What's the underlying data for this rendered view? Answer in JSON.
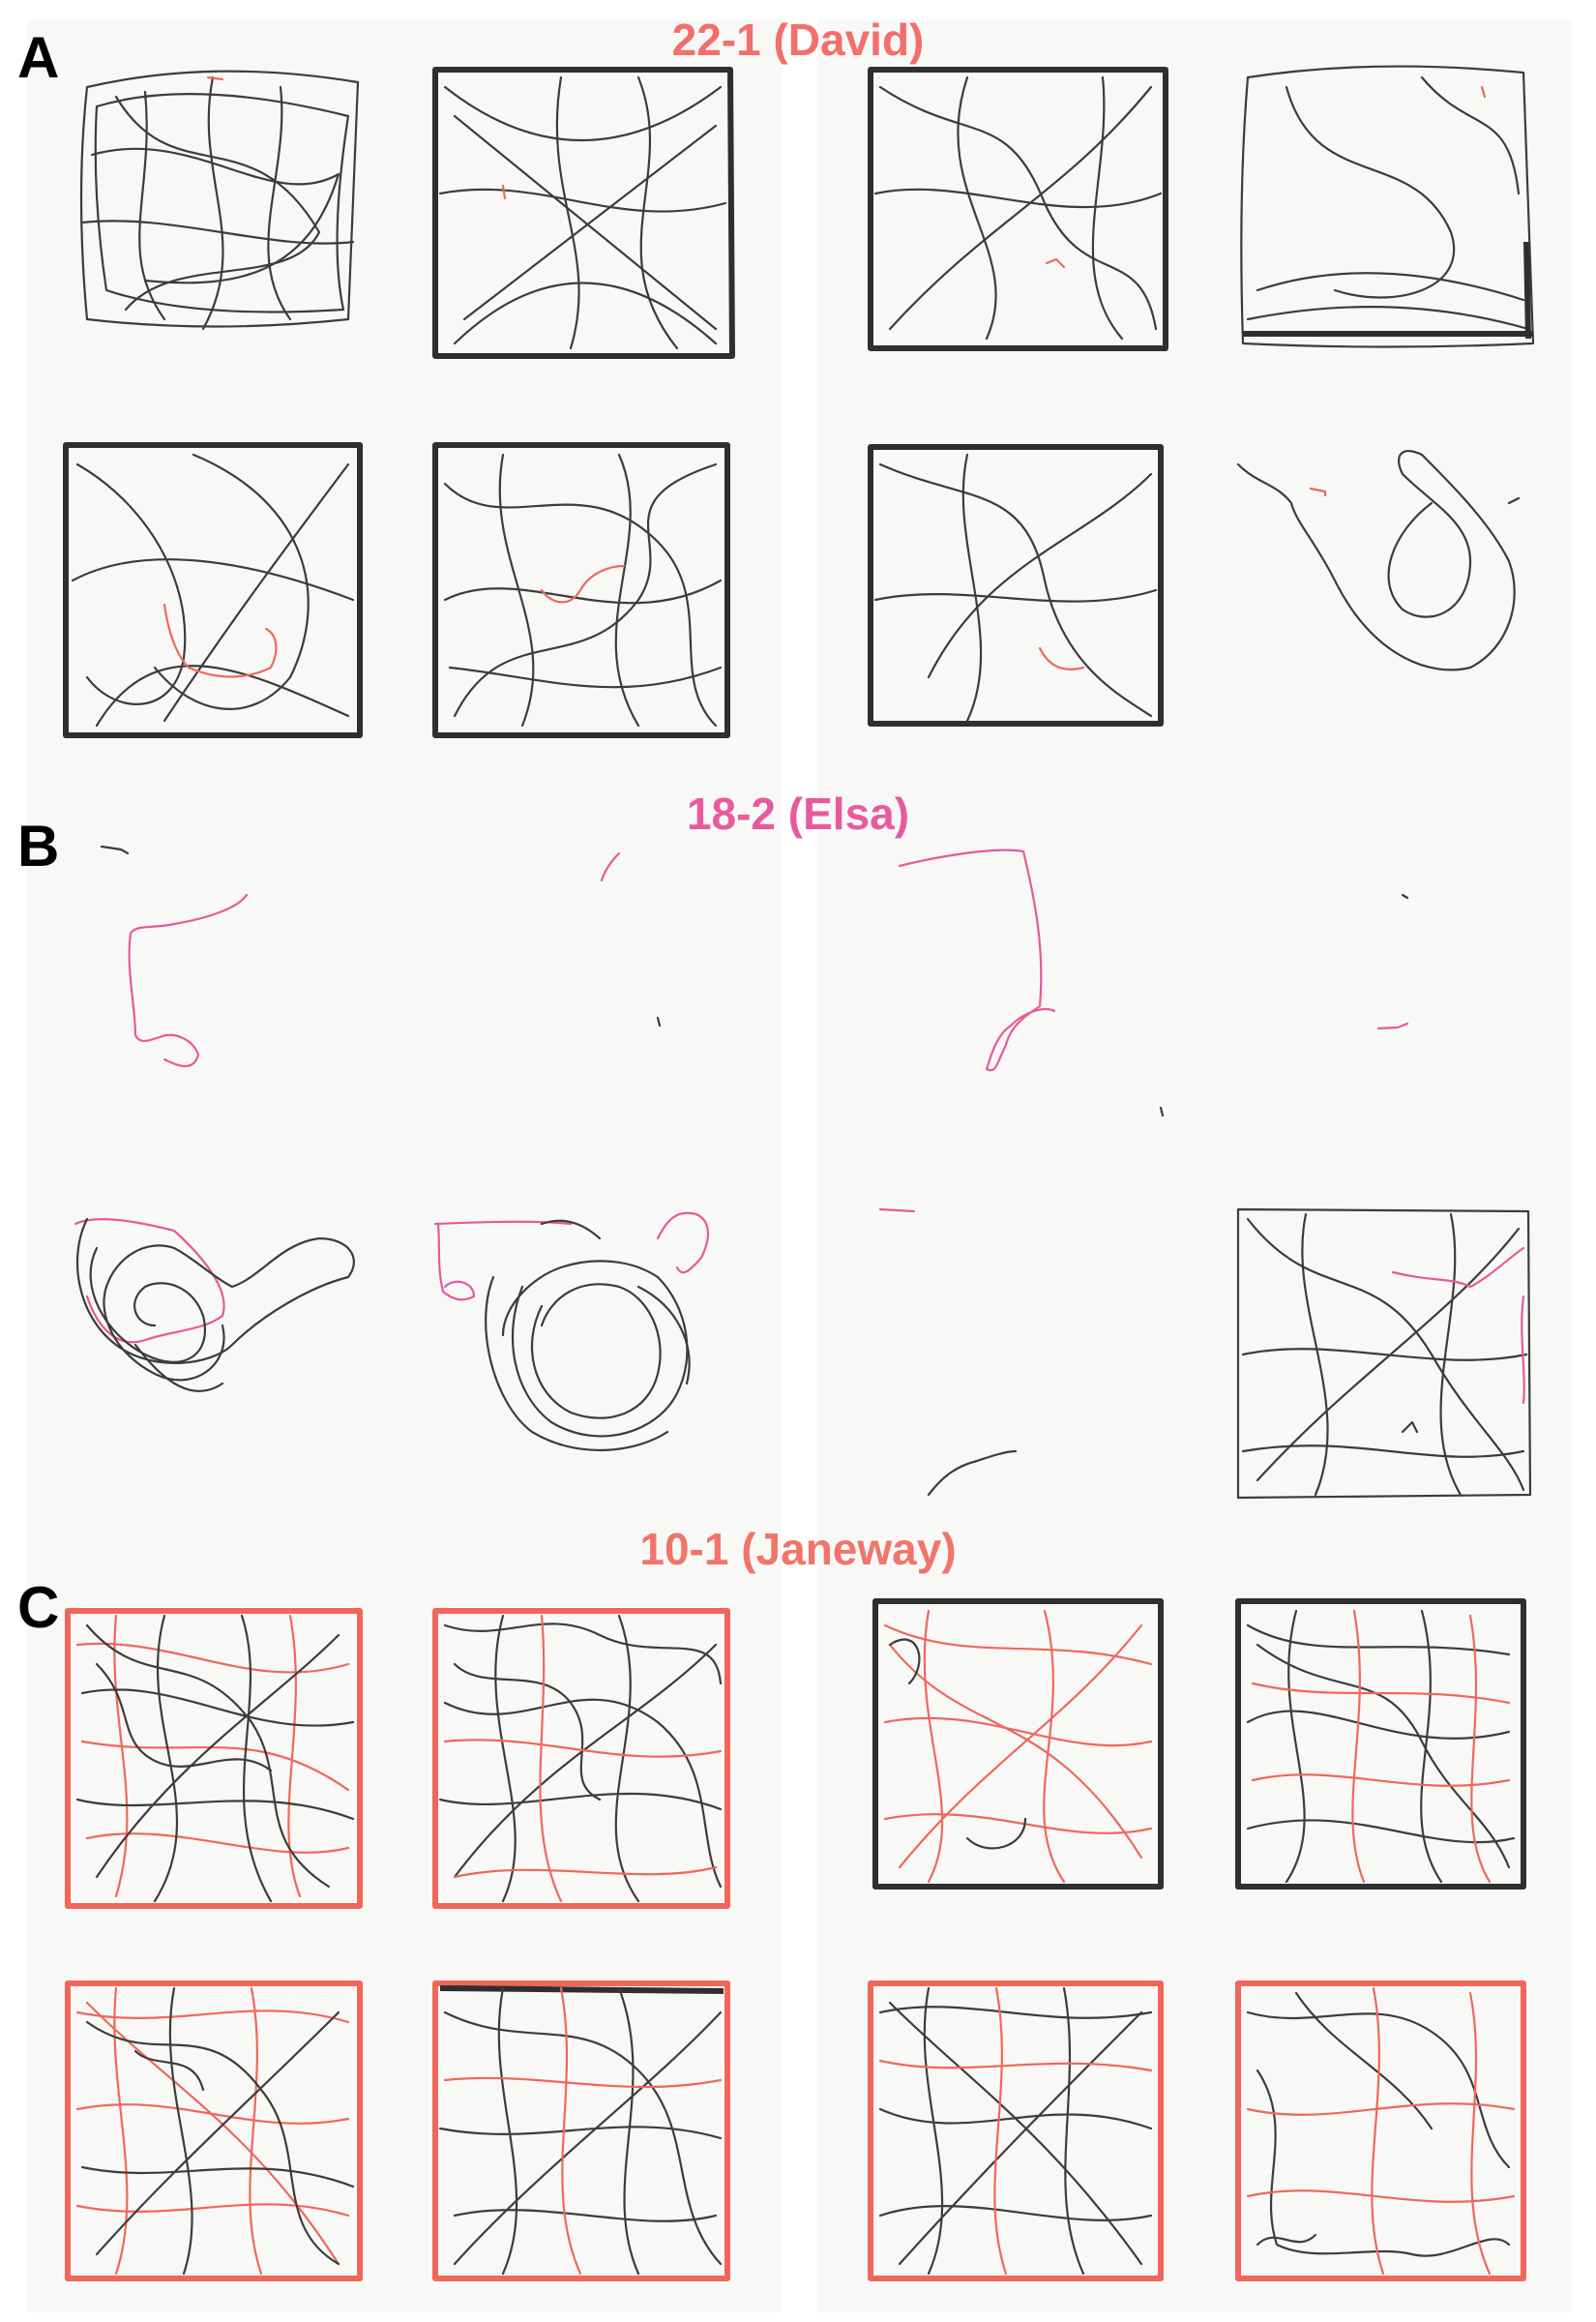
{
  "sections": [
    {
      "letter": "A",
      "title": "22-1 (David)",
      "title_color": "#f26f6b"
    },
    {
      "letter": "B",
      "title": "18-2 (Elsa)",
      "title_color": "#e85a9e"
    },
    {
      "letter": "C",
      "title": "10-1 (Janeway)",
      "title_color": "#f0756a"
    }
  ],
  "colors": {
    "background": "#f8f9f7",
    "trace_dark": "#3c3c3c",
    "trace_red": "#f0675a",
    "trace_pink": "#e8589a"
  }
}
